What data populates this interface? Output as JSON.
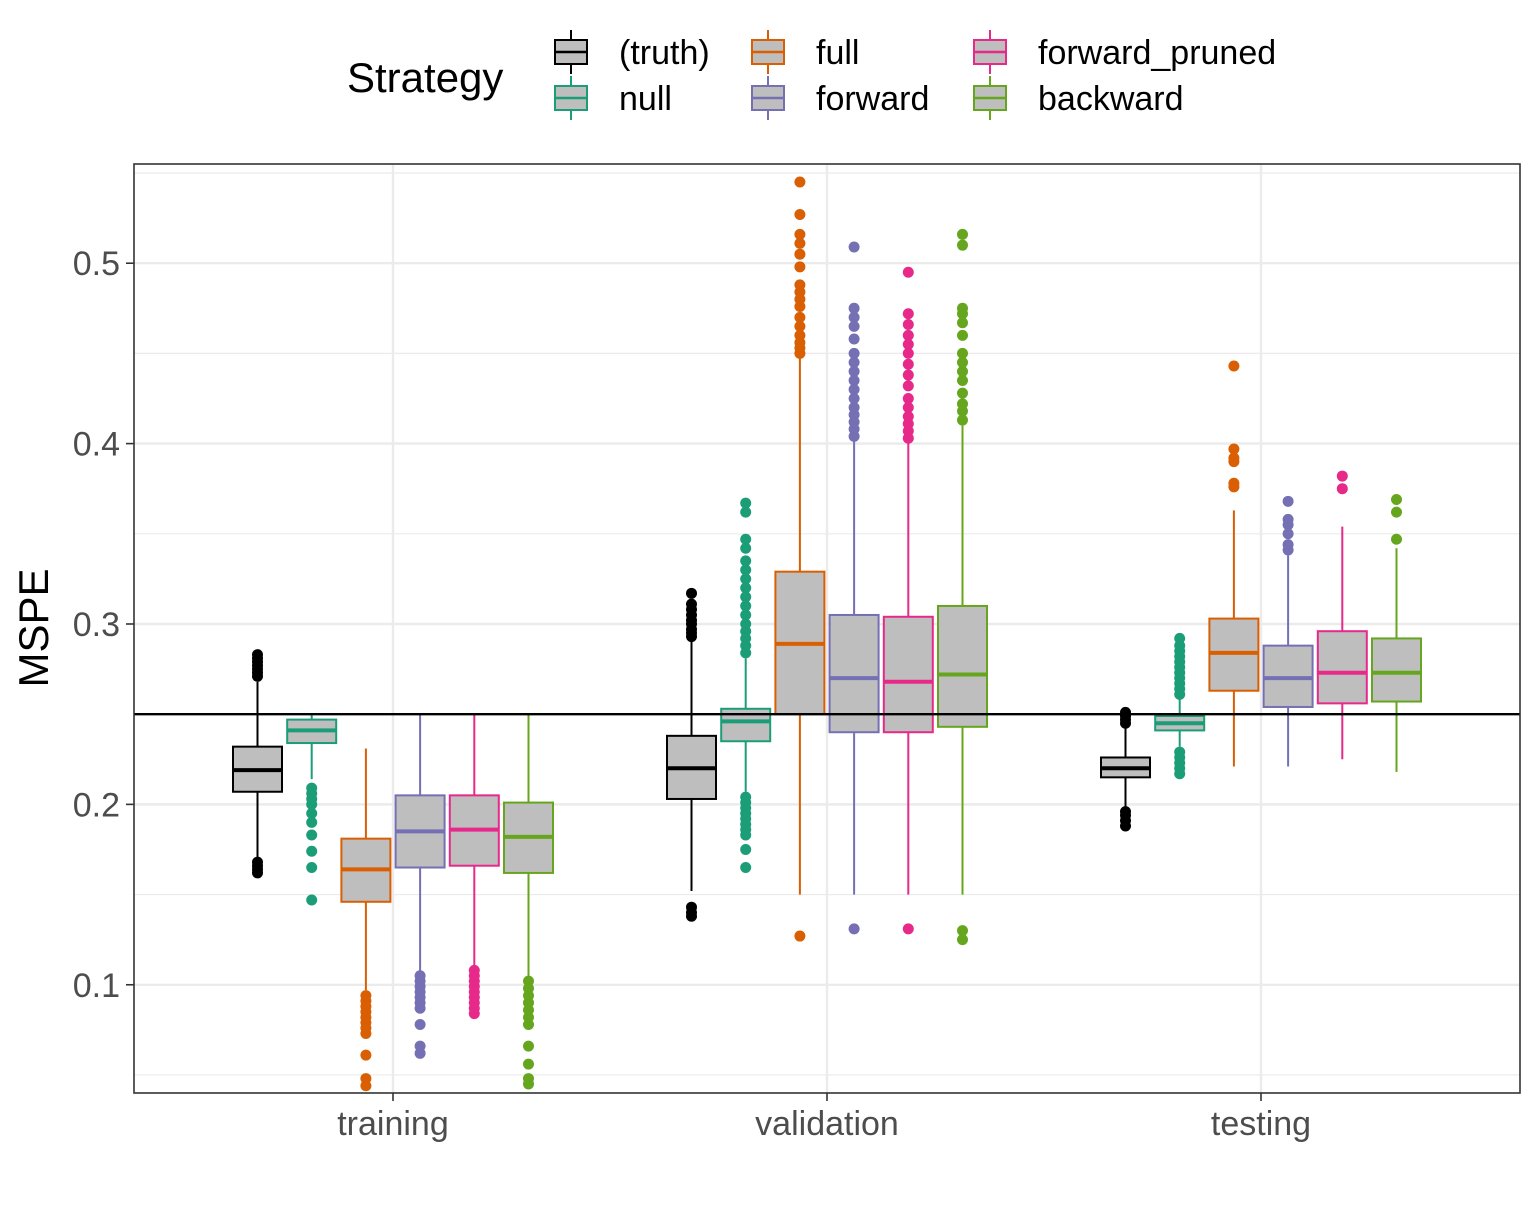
{
  "chart_data": {
    "type": "boxplot",
    "title": "",
    "xlabel": "",
    "ylabel": "MSPE",
    "ylim": [
      0.04,
      0.555
    ],
    "yticks": [
      0.1,
      0.2,
      0.3,
      0.4,
      0.5
    ],
    "ytick_labels": [
      "0.1",
      "0.2",
      "0.3",
      "0.4",
      "0.5"
    ],
    "reference_line": 0.25,
    "categories": [
      "training",
      "validation",
      "testing"
    ],
    "legend": {
      "title": "Strategy",
      "position": "top",
      "entries": [
        {
          "name": "(truth)",
          "color": "#000000"
        },
        {
          "name": "null",
          "color": "#1b9e77"
        },
        {
          "name": "full",
          "color": "#d95f02"
        },
        {
          "name": "forward",
          "color": "#7570b3"
        },
        {
          "name": "forward_pruned",
          "color": "#e7298a"
        },
        {
          "name": "backward",
          "color": "#66a61e"
        }
      ]
    },
    "box_fill": "#bebebe",
    "series": [
      {
        "name": "(truth)",
        "color": "#000000",
        "boxes": [
          {
            "category": "training",
            "q1": 0.207,
            "median": 0.219,
            "q3": 0.232,
            "whisker_low": 0.17,
            "whisker_high": 0.268,
            "outliers": [
              0.162,
              0.164,
              0.166,
              0.168,
              0.271,
              0.273,
              0.275,
              0.277,
              0.279,
              0.281,
              0.283
            ]
          },
          {
            "category": "validation",
            "q1": 0.203,
            "median": 0.22,
            "q3": 0.238,
            "whisker_low": 0.152,
            "whisker_high": 0.291,
            "outliers": [
              0.138,
              0.14,
              0.143,
              0.293,
              0.295,
              0.297,
              0.3,
              0.302,
              0.305,
              0.308,
              0.311,
              0.317
            ]
          },
          {
            "category": "testing",
            "q1": 0.215,
            "median": 0.22,
            "q3": 0.226,
            "whisker_low": 0.198,
            "whisker_high": 0.243,
            "outliers": [
              0.188,
              0.191,
              0.194,
              0.196,
              0.245,
              0.247,
              0.249,
              0.251
            ]
          }
        ]
      },
      {
        "name": "null",
        "color": "#1b9e77",
        "boxes": [
          {
            "category": "training",
            "q1": 0.234,
            "median": 0.241,
            "q3": 0.247,
            "whisker_low": 0.214,
            "whisker_high": 0.25,
            "outliers": [
              0.147,
              0.165,
              0.174,
              0.183,
              0.19,
              0.195,
              0.2,
              0.203,
              0.206,
              0.209
            ]
          },
          {
            "category": "validation",
            "q1": 0.235,
            "median": 0.246,
            "q3": 0.253,
            "whisker_low": 0.207,
            "whisker_high": 0.281,
            "outliers": [
              0.165,
              0.175,
              0.183,
              0.186,
              0.189,
              0.192,
              0.195,
              0.198,
              0.201,
              0.204,
              0.284,
              0.288,
              0.292,
              0.296,
              0.3,
              0.305,
              0.31,
              0.315,
              0.32,
              0.325,
              0.33,
              0.335,
              0.342,
              0.347,
              0.362,
              0.367
            ]
          },
          {
            "category": "testing",
            "q1": 0.241,
            "median": 0.245,
            "q3": 0.249,
            "whisker_low": 0.232,
            "whisker_high": 0.259,
            "outliers": [
              0.217,
              0.22,
              0.223,
              0.226,
              0.229,
              0.261,
              0.264,
              0.267,
              0.27,
              0.273,
              0.276,
              0.279,
              0.282,
              0.285,
              0.288,
              0.292
            ]
          }
        ]
      },
      {
        "name": "full",
        "color": "#d95f02",
        "boxes": [
          {
            "category": "training",
            "q1": 0.146,
            "median": 0.164,
            "q3": 0.181,
            "whisker_low": 0.097,
            "whisker_high": 0.231,
            "outliers": [
              0.044,
              0.048,
              0.061,
              0.073,
              0.076,
              0.079,
              0.082,
              0.085,
              0.088,
              0.091,
              0.094
            ]
          },
          {
            "category": "validation",
            "q1": 0.25,
            "median": 0.289,
            "q3": 0.329,
            "whisker_low": 0.15,
            "whisker_high": 0.449,
            "outliers": [
              0.127,
              0.45,
              0.453,
              0.456,
              0.46,
              0.465,
              0.47,
              0.476,
              0.48,
              0.484,
              0.488,
              0.498,
              0.505,
              0.511,
              0.516,
              0.527,
              0.545
            ]
          },
          {
            "category": "testing",
            "q1": 0.263,
            "median": 0.284,
            "q3": 0.303,
            "whisker_low": 0.221,
            "whisker_high": 0.363,
            "outliers": [
              0.376,
              0.378,
              0.39,
              0.392,
              0.397,
              0.443
            ]
          }
        ]
      },
      {
        "name": "forward",
        "color": "#7570b3",
        "boxes": [
          {
            "category": "training",
            "q1": 0.165,
            "median": 0.185,
            "q3": 0.205,
            "whisker_low": 0.107,
            "whisker_high": 0.25,
            "outliers": [
              0.062,
              0.066,
              0.078,
              0.087,
              0.09,
              0.093,
              0.096,
              0.099,
              0.102,
              0.105
            ]
          },
          {
            "category": "validation",
            "q1": 0.24,
            "median": 0.27,
            "q3": 0.305,
            "whisker_low": 0.15,
            "whisker_high": 0.402,
            "outliers": [
              0.131,
              0.404,
              0.408,
              0.412,
              0.416,
              0.42,
              0.425,
              0.43,
              0.435,
              0.44,
              0.445,
              0.45,
              0.458,
              0.465,
              0.47,
              0.475,
              0.509
            ]
          },
          {
            "category": "testing",
            "q1": 0.254,
            "median": 0.27,
            "q3": 0.288,
            "whisker_low": 0.221,
            "whisker_high": 0.338,
            "outliers": [
              0.341,
              0.344,
              0.35,
              0.355,
              0.358,
              0.368
            ]
          }
        ]
      },
      {
        "name": "forward_pruned",
        "color": "#e7298a",
        "boxes": [
          {
            "category": "training",
            "q1": 0.166,
            "median": 0.186,
            "q3": 0.205,
            "whisker_low": 0.109,
            "whisker_high": 0.25,
            "outliers": [
              0.084,
              0.087,
              0.09,
              0.093,
              0.096,
              0.099,
              0.102,
              0.105,
              0.108
            ]
          },
          {
            "category": "validation",
            "q1": 0.24,
            "median": 0.268,
            "q3": 0.304,
            "whisker_low": 0.15,
            "whisker_high": 0.401,
            "outliers": [
              0.131,
              0.403,
              0.407,
              0.411,
              0.415,
              0.42,
              0.425,
              0.432,
              0.438,
              0.444,
              0.45,
              0.455,
              0.46,
              0.466,
              0.472,
              0.495
            ]
          },
          {
            "category": "testing",
            "q1": 0.256,
            "median": 0.273,
            "q3": 0.296,
            "whisker_low": 0.225,
            "whisker_high": 0.354,
            "outliers": [
              0.375,
              0.382
            ]
          }
        ]
      },
      {
        "name": "backward",
        "color": "#66a61e",
        "boxes": [
          {
            "category": "training",
            "q1": 0.162,
            "median": 0.182,
            "q3": 0.201,
            "whisker_low": 0.104,
            "whisker_high": 0.25,
            "outliers": [
              0.045,
              0.048,
              0.056,
              0.066,
              0.078,
              0.082,
              0.086,
              0.09,
              0.094,
              0.098,
              0.102
            ]
          },
          {
            "category": "validation",
            "q1": 0.243,
            "median": 0.272,
            "q3": 0.31,
            "whisker_low": 0.15,
            "whisker_high": 0.41,
            "outliers": [
              0.125,
              0.13,
              0.413,
              0.418,
              0.422,
              0.428,
              0.435,
              0.44,
              0.445,
              0.45,
              0.46,
              0.467,
              0.472,
              0.475,
              0.51,
              0.516
            ]
          },
          {
            "category": "testing",
            "q1": 0.257,
            "median": 0.273,
            "q3": 0.292,
            "whisker_low": 0.218,
            "whisker_high": 0.342,
            "outliers": [
              0.347,
              0.362,
              0.369
            ]
          }
        ]
      }
    ]
  }
}
